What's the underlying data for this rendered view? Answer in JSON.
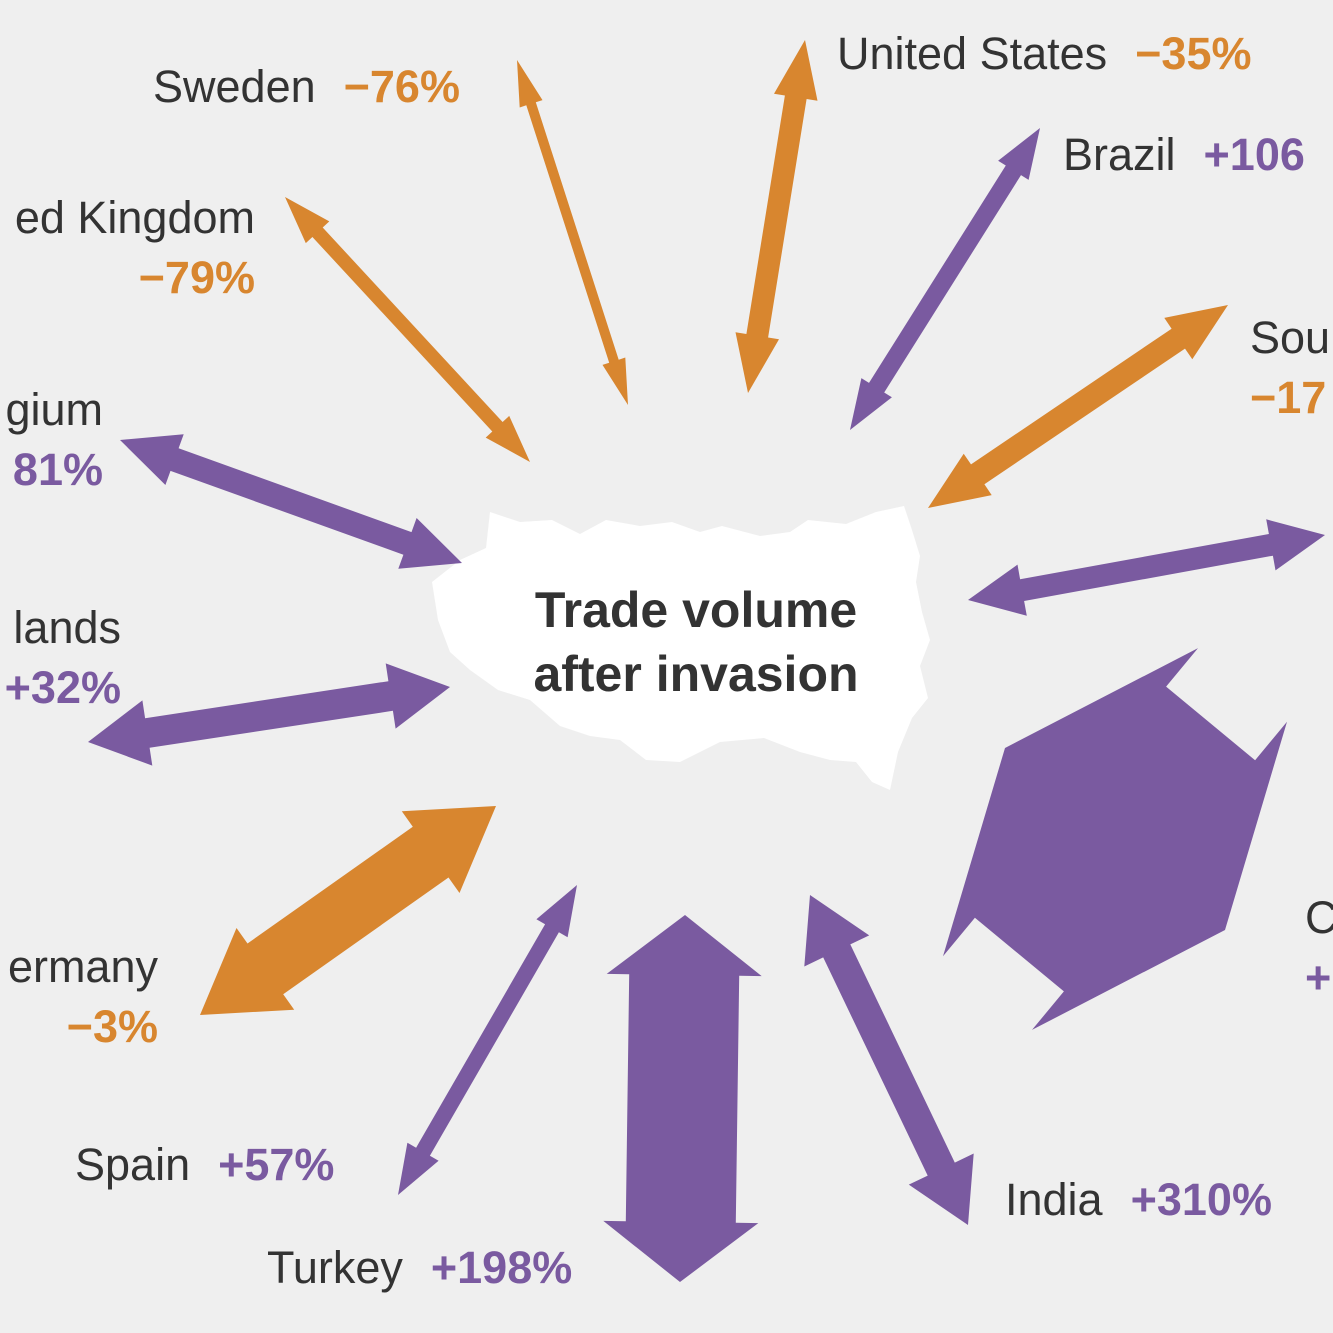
{
  "title": {
    "line1": "Trade volume",
    "line2": "after invasion"
  },
  "colors": {
    "background": "#efefef",
    "decrease": "#d8862f",
    "increase": "#7a5aa0",
    "landmass": "#ffffff",
    "text": "#333333"
  },
  "countries": [
    {
      "id": "united-states",
      "label": "United States",
      "change": "−35%"
    },
    {
      "id": "brazil",
      "label": "Brazil",
      "change": "+106"
    },
    {
      "id": "south-korea",
      "label": "Sou",
      "change": "−17"
    },
    {
      "id": "japan",
      "label": "",
      "change": ""
    },
    {
      "id": "china",
      "label": "C",
      "change": "+"
    },
    {
      "id": "india",
      "label": "India",
      "change": "+310%"
    },
    {
      "id": "turkey",
      "label": "Turkey",
      "change": "+198%"
    },
    {
      "id": "spain",
      "label": "Spain",
      "change": "+57%"
    },
    {
      "id": "germany",
      "label": "ermany",
      "change": "−3%"
    },
    {
      "id": "netherlands",
      "label": "lands",
      "change": "+32%"
    },
    {
      "id": "belgium",
      "label": "gium",
      "change": "81%"
    },
    {
      "id": "united-kingdom",
      "label": "ed Kingdom",
      "change": "−79%"
    },
    {
      "id": "sweden",
      "label": "Sweden",
      "change": "−76%"
    }
  ]
}
